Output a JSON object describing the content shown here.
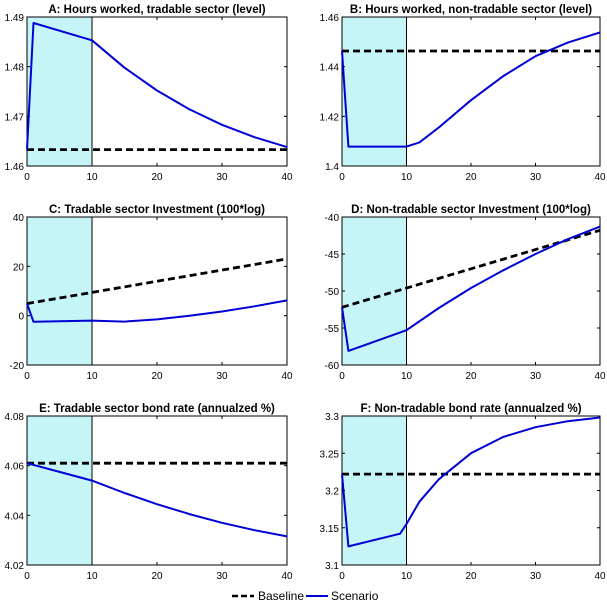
{
  "legend": {
    "baseline": "Baseline",
    "scenario": "Scenario"
  },
  "colors": {
    "shade": "#c6f5f7",
    "scenario": "#0000d6",
    "baseline": "#000000"
  },
  "chart_data": [
    {
      "type": "line",
      "title": "A: Hours worked, tradable sector (level)",
      "xlim": [
        0,
        40
      ],
      "ylim": [
        1.46,
        1.49
      ],
      "xticks": [
        "0",
        "10",
        "20",
        "30",
        "40"
      ],
      "yticks": [
        "1.46",
        "1.47",
        "1.48",
        "1.49"
      ],
      "shaded_x": [
        0,
        10
      ],
      "series": [
        {
          "name": "Baseline",
          "x": [
            0,
            40
          ],
          "values": [
            1.4633,
            1.4633
          ]
        },
        {
          "name": "Scenario",
          "x": [
            0,
            1,
            10,
            15,
            20,
            25,
            30,
            35,
            40
          ],
          "values": [
            1.4633,
            1.4888,
            1.4853,
            1.4798,
            1.4752,
            1.4714,
            1.4683,
            1.4658,
            1.4638
          ]
        }
      ]
    },
    {
      "type": "line",
      "title": "B: Hours worked, non-tradable sector (level)",
      "xlim": [
        0,
        40
      ],
      "ylim": [
        1.4,
        1.46
      ],
      "xticks": [
        "0",
        "10",
        "20",
        "30",
        "40"
      ],
      "yticks": [
        "1.4",
        "1.42",
        "1.44",
        "1.46"
      ],
      "shaded_x": [
        0,
        10
      ],
      "series": [
        {
          "name": "Baseline",
          "x": [
            0,
            40
          ],
          "values": [
            1.4463,
            1.4463
          ]
        },
        {
          "name": "Scenario",
          "x": [
            0,
            1,
            10,
            12,
            15,
            20,
            25,
            30,
            35,
            40
          ],
          "values": [
            1.4463,
            1.4078,
            1.4078,
            1.4095,
            1.4155,
            1.4265,
            1.4362,
            1.4442,
            1.4497,
            1.4538
          ]
        }
      ]
    },
    {
      "type": "line",
      "title": "C: Tradable sector Investment (100*log)",
      "xlim": [
        0,
        40
      ],
      "ylim": [
        -20,
        40
      ],
      "xticks": [
        "0",
        "10",
        "20",
        "30",
        "40"
      ],
      "yticks": [
        "-20",
        "0",
        "20",
        "40"
      ],
      "shaded_x": [
        0,
        10
      ],
      "series": [
        {
          "name": "Baseline",
          "x": [
            0,
            40
          ],
          "values": [
            4.9,
            23.0
          ]
        },
        {
          "name": "Scenario",
          "x": [
            0,
            1,
            10,
            15,
            20,
            25,
            30,
            35,
            40
          ],
          "values": [
            4.9,
            -2.5,
            -2.0,
            -2.4,
            -1.5,
            0.0,
            1.7,
            3.8,
            6.2
          ]
        }
      ]
    },
    {
      "type": "line",
      "title": "D: Non-tradable sector Investment (100*log)",
      "xlim": [
        0,
        40
      ],
      "ylim": [
        -60,
        -40
      ],
      "xticks": [
        "0",
        "10",
        "20",
        "30",
        "40"
      ],
      "yticks": [
        "-60",
        "-55",
        "-50",
        "-45",
        "-40"
      ],
      "shaded_x": [
        0,
        10
      ],
      "series": [
        {
          "name": "Baseline",
          "x": [
            0,
            40
          ],
          "values": [
            -52.2,
            -41.8
          ]
        },
        {
          "name": "Scenario",
          "x": [
            0,
            1,
            10,
            15,
            20,
            25,
            30,
            35,
            40
          ],
          "values": [
            -52.2,
            -58.1,
            -55.3,
            -52.3,
            -49.6,
            -47.2,
            -45.0,
            -43.0,
            -41.3
          ]
        }
      ]
    },
    {
      "type": "line",
      "title": "E: Tradable sector bond rate (annualzed %)",
      "xlim": [
        0,
        40
      ],
      "ylim": [
        4.02,
        4.08
      ],
      "xticks": [
        "0",
        "10",
        "20",
        "30",
        "40"
      ],
      "yticks": [
        "4.02",
        "4.04",
        "4.06",
        "4.08"
      ],
      "shaded_x": [
        0,
        10
      ],
      "series": [
        {
          "name": "Baseline",
          "x": [
            0,
            40
          ],
          "values": [
            4.061,
            4.061
          ]
        },
        {
          "name": "Scenario",
          "x": [
            0,
            5,
            10,
            15,
            20,
            25,
            30,
            35,
            40
          ],
          "values": [
            4.061,
            4.0575,
            4.054,
            4.049,
            4.0445,
            4.0405,
            4.037,
            4.034,
            4.0315
          ]
        }
      ]
    },
    {
      "type": "line",
      "title": "F: Non-tradable bond rate (annualzed %)",
      "xlim": [
        0,
        40
      ],
      "ylim": [
        3.1,
        3.3
      ],
      "xticks": [
        "0",
        "10",
        "20",
        "30",
        "40"
      ],
      "yticks": [
        "3.1",
        "3.15",
        "3.2",
        "3.25",
        "3.3"
      ],
      "shaded_x": [
        0,
        10
      ],
      "series": [
        {
          "name": "Baseline",
          "x": [
            0,
            40
          ],
          "values": [
            3.222,
            3.222
          ]
        },
        {
          "name": "Scenario",
          "x": [
            0,
            1,
            9,
            10,
            12,
            15,
            20,
            25,
            30,
            35,
            40
          ],
          "values": [
            3.222,
            3.125,
            3.142,
            3.155,
            3.185,
            3.215,
            3.25,
            3.272,
            3.285,
            3.293,
            3.298
          ]
        }
      ]
    }
  ]
}
